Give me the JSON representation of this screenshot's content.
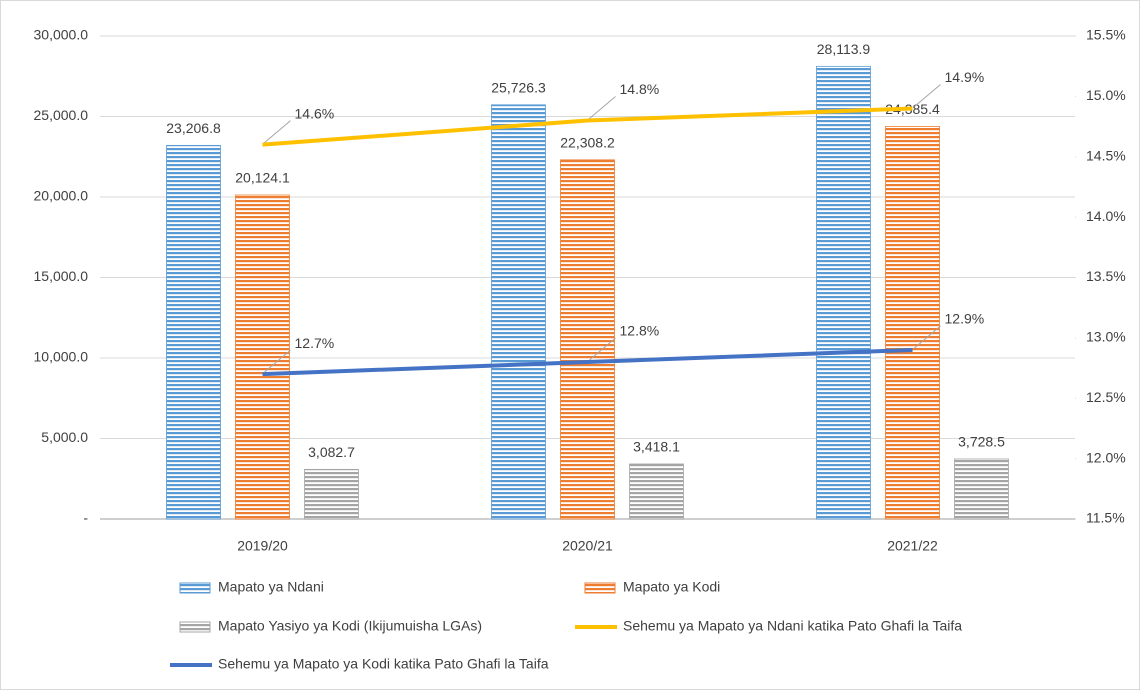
{
  "chart_data": {
    "type": "bar",
    "categories": [
      "2019/20",
      "2020/21",
      "2021/22"
    ],
    "series": [
      {
        "name": "Mapato ya Ndani",
        "type": "bar",
        "color": "#5b9bd5",
        "values": [
          23206.8,
          25726.3,
          28113.9
        ],
        "value_labels": [
          "23,206.8",
          "25,726.3",
          "28,113.9"
        ]
      },
      {
        "name": "Mapato ya Kodi",
        "type": "bar",
        "color": "#ed7d31",
        "values": [
          20124.1,
          22308.2,
          24385.4
        ],
        "value_labels": [
          "20,124.1",
          "22,308.2",
          "24,385.4"
        ]
      },
      {
        "name": "Mapato Yasiyo ya Kodi (Ikijumuisha LGAs)",
        "type": "bar",
        "color": "#a5a5a5",
        "values": [
          3082.7,
          3418.1,
          3728.5
        ],
        "value_labels": [
          "3,082.7",
          "3,418.1",
          "3,728.5"
        ]
      },
      {
        "name": "Sehemu ya Mapato ya Ndani katika Pato Ghafi la Taifa",
        "type": "line",
        "axis": "y2",
        "color": "#ffc000",
        "values": [
          14.6,
          14.8,
          14.9
        ],
        "value_labels": [
          "14.6%",
          "14.8%",
          "14.9%"
        ]
      },
      {
        "name": "Sehemu ya Mapato ya Kodi katika Pato Ghafi la Taifa",
        "type": "line",
        "axis": "y2",
        "color": "#4472c4",
        "values": [
          12.7,
          12.8,
          12.9
        ],
        "value_labels": [
          "12.7%",
          "12.8%",
          "12.9%"
        ]
      }
    ],
    "ylim": [
      0,
      30000
    ],
    "yticks": [
      {
        "value": 0,
        "label": "-"
      },
      {
        "value": 5000,
        "label": "5,000.0"
      },
      {
        "value": 10000,
        "label": "10,000.0"
      },
      {
        "value": 15000,
        "label": "15,000.0"
      },
      {
        "value": 20000,
        "label": "20,000.0"
      },
      {
        "value": 25000,
        "label": "25,000.0"
      },
      {
        "value": 30000,
        "label": "30,000.0"
      }
    ],
    "y2lim": [
      11.5,
      15.5
    ],
    "y2ticks": [
      {
        "value": 11.5,
        "label": "11.5%"
      },
      {
        "value": 12,
        "label": "12.0%"
      },
      {
        "value": 12.5,
        "label": "12.5%"
      },
      {
        "value": 13,
        "label": "13.0%"
      },
      {
        "value": 13.5,
        "label": "13.5%"
      },
      {
        "value": 14,
        "label": "14.0%"
      },
      {
        "value": 14.5,
        "label": "14.5%"
      },
      {
        "value": 15,
        "label": "15.0%"
      },
      {
        "value": 15.5,
        "label": "15.5%"
      }
    ],
    "grid": true,
    "legend": "bottom"
  }
}
